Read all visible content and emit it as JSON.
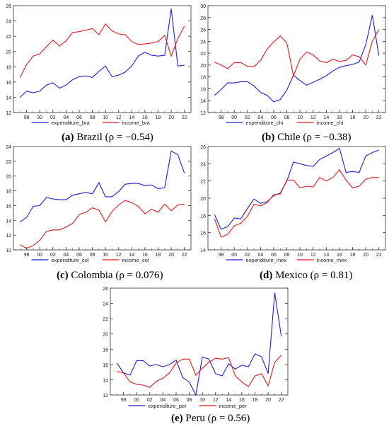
{
  "colors": {
    "expenditure": "#1f1fd6",
    "income": "#e31a1c"
  },
  "chart_data": [
    {
      "type": "line",
      "panel": "(a)",
      "caption": {
        "tag": "(a)",
        "name": "Brazil",
        "rho": "(ρ = −0.54)"
      },
      "x": [
        "1997",
        "1998",
        "1999",
        "2000",
        "2001",
        "2002",
        "2003",
        "2004",
        "2005",
        "2006",
        "2007",
        "2008",
        "2009",
        "2010",
        "2011",
        "2012",
        "2013",
        "2014",
        "2015",
        "2016",
        "2017",
        "2018",
        "2019",
        "2020",
        "2021",
        "2022"
      ],
      "xticks": [
        "98",
        "00",
        "02",
        "04",
        "06",
        "08",
        "10",
        "12",
        "14",
        "16",
        "18",
        "20",
        "22"
      ],
      "ylim": [
        12,
        26
      ],
      "yticks": [
        "12",
        "14",
        "16",
        "18",
        "20",
        "22",
        "24",
        "26"
      ],
      "grid": false,
      "legend_position": "bottom-center",
      "series": [
        {
          "name": "expenditure_bra",
          "values": [
            14.0,
            14.8,
            14.6,
            14.8,
            15.6,
            15.9,
            15.2,
            15.6,
            16.3,
            16.7,
            16.8,
            16.6,
            17.4,
            18.1,
            16.7,
            16.9,
            17.3,
            18.1,
            19.4,
            19.9,
            19.5,
            19.4,
            19.5,
            25.6,
            18.1,
            18.2
          ]
        },
        {
          "name": "income_bra",
          "values": [
            16.6,
            18.3,
            19.4,
            19.7,
            20.6,
            21.5,
            20.7,
            21.4,
            22.5,
            22.6,
            22.8,
            23.0,
            22.2,
            23.6,
            22.7,
            22.3,
            22.2,
            21.3,
            20.9,
            21.0,
            21.1,
            21.3,
            22.1,
            19.4,
            21.7,
            23.3
          ]
        }
      ]
    },
    {
      "type": "line",
      "panel": "(b)",
      "caption": {
        "tag": "(b)",
        "name": "Chile",
        "rho": "(ρ = −0.38)"
      },
      "x": [
        "1997",
        "1998",
        "1999",
        "2000",
        "2001",
        "2002",
        "2003",
        "2004",
        "2005",
        "2006",
        "2007",
        "2008",
        "2009",
        "2010",
        "2011",
        "2012",
        "2013",
        "2014",
        "2015",
        "2016",
        "2017",
        "2018",
        "2019",
        "2020",
        "2021",
        "2022"
      ],
      "xticks": [
        "98",
        "00",
        "02",
        "04",
        "06",
        "08",
        "10",
        "12",
        "14",
        "16",
        "18",
        "20",
        "22"
      ],
      "ylim": [
        12,
        30
      ],
      "yticks": [
        "12",
        "14",
        "16",
        "18",
        "20",
        "22",
        "24",
        "26",
        "28",
        "30"
      ],
      "grid": false,
      "legend_position": "bottom-center",
      "series": [
        {
          "name": "expenditure_chi",
          "values": [
            14.9,
            15.9,
            17.0,
            17.0,
            17.2,
            17.2,
            16.5,
            15.4,
            14.9,
            13.8,
            14.2,
            15.8,
            18.3,
            17.4,
            16.6,
            17.1,
            17.6,
            18.2,
            19.0,
            19.6,
            19.9,
            20.1,
            20.5,
            23.4,
            28.4,
            21.6
          ]
        },
        {
          "name": "income_chi",
          "values": [
            20.5,
            20.0,
            19.4,
            20.4,
            20.4,
            19.8,
            19.7,
            20.8,
            22.7,
            23.9,
            24.9,
            23.7,
            18.2,
            21.0,
            22.2,
            21.7,
            20.7,
            20.4,
            21.0,
            20.6,
            20.8,
            21.7,
            21.4,
            20.0,
            24.0,
            26.0
          ]
        }
      ]
    },
    {
      "type": "line",
      "panel": "(c)",
      "caption": {
        "tag": "(c)",
        "name": "Colombia",
        "rho": "(ρ = 0.076)"
      },
      "x": [
        "1997",
        "1998",
        "1999",
        "2000",
        "2001",
        "2002",
        "2003",
        "2004",
        "2005",
        "2006",
        "2007",
        "2008",
        "2009",
        "2010",
        "2011",
        "2012",
        "2013",
        "2014",
        "2015",
        "2016",
        "2017",
        "2018",
        "2019",
        "2020",
        "2021",
        "2022"
      ],
      "xticks": [
        "98",
        "00",
        "02",
        "04",
        "06",
        "08",
        "10",
        "12",
        "14",
        "16",
        "18",
        "20",
        "22"
      ],
      "ylim": [
        10,
        24
      ],
      "yticks": [
        "10",
        "12",
        "14",
        "16",
        "18",
        "20",
        "22",
        "24"
      ],
      "grid": false,
      "legend_position": "bottom-center",
      "series": [
        {
          "name": "expenditure_col",
          "values": [
            13.8,
            14.4,
            15.9,
            16.0,
            17.1,
            16.9,
            16.8,
            16.8,
            17.4,
            17.6,
            17.8,
            17.6,
            19.1,
            17.2,
            17.2,
            17.9,
            18.9,
            19.0,
            19.0,
            18.7,
            18.8,
            18.3,
            18.4,
            23.4,
            22.9,
            20.4
          ]
        },
        {
          "name": "income_col",
          "values": [
            10.7,
            10.2,
            10.6,
            11.3,
            12.5,
            12.7,
            12.7,
            13.1,
            13.6,
            14.8,
            15.1,
            15.7,
            15.4,
            13.8,
            15.2,
            16.1,
            16.7,
            16.4,
            15.9,
            14.9,
            15.5,
            15.1,
            16.2,
            15.3,
            16.1,
            16.2
          ]
        }
      ]
    },
    {
      "type": "line",
      "panel": "(d)",
      "caption": {
        "tag": "(d)",
        "name": "Mexico",
        "rho": "(ρ = 0.81)"
      },
      "x": [
        "1997",
        "1998",
        "1999",
        "2000",
        "2001",
        "2002",
        "2003",
        "2004",
        "2005",
        "2006",
        "2007",
        "2008",
        "2009",
        "2010",
        "2011",
        "2012",
        "2013",
        "2014",
        "2015",
        "2016",
        "2017",
        "2018",
        "2019",
        "2020",
        "2021",
        "2022"
      ],
      "xticks": [
        "98",
        "00",
        "02",
        "04",
        "06",
        "08",
        "10",
        "12",
        "14",
        "16",
        "18",
        "20",
        "22"
      ],
      "ylim": [
        14,
        26
      ],
      "yticks": [
        "14",
        "16",
        "18",
        "20",
        "22",
        "24",
        "26"
      ],
      "grid": false,
      "legend_position": "bottom-center",
      "series": [
        {
          "name": "expenditure_mex",
          "values": [
            18.1,
            16.4,
            16.7,
            17.7,
            17.6,
            18.8,
            19.9,
            19.4,
            19.6,
            20.3,
            20.6,
            22.0,
            24.2,
            24.0,
            23.8,
            23.7,
            24.5,
            24.9,
            25.3,
            25.8,
            23.0,
            23.1,
            23.0,
            24.9,
            25.3,
            25.6
          ]
        },
        {
          "name": "income_mex",
          "values": [
            17.6,
            15.5,
            15.8,
            16.8,
            17.1,
            17.9,
            19.3,
            19.1,
            19.5,
            20.4,
            20.5,
            22.1,
            22.1,
            21.2,
            21.4,
            21.3,
            22.4,
            22.0,
            22.4,
            23.3,
            22.1,
            21.2,
            21.4,
            22.2,
            22.4,
            22.4
          ]
        }
      ]
    },
    {
      "type": "line",
      "panel": "(e)",
      "caption": {
        "tag": "(e)",
        "name": "Peru",
        "rho": "(ρ = 0.56)"
      },
      "x": [
        "1997",
        "1998",
        "1999",
        "2000",
        "2001",
        "2002",
        "2003",
        "2004",
        "2005",
        "2006",
        "2007",
        "2008",
        "2009",
        "2010",
        "2011",
        "2012",
        "2013",
        "2014",
        "2015",
        "2016",
        "2017",
        "2018",
        "2019",
        "2020",
        "2021",
        "2022"
      ],
      "xticks": [
        "98",
        "00",
        "02",
        "04",
        "06",
        "08",
        "10",
        "12",
        "14",
        "16",
        "18",
        "20",
        "22"
      ],
      "ylim": [
        12,
        26
      ],
      "yticks": [
        "12",
        "14",
        "16",
        "18",
        "20",
        "22",
        "24",
        "26"
      ],
      "grid": false,
      "legend_position": "bottom-center",
      "series": [
        {
          "name": "expenditure_per",
          "values": [
            16.2,
            14.9,
            14.6,
            16.5,
            16.5,
            15.8,
            16.0,
            15.7,
            16.0,
            16.6,
            14.3,
            13.7,
            12.0,
            17.0,
            16.7,
            14.8,
            14.5,
            16.1,
            15.4,
            15.9,
            15.7,
            17.4,
            17.0,
            14.8,
            25.4,
            19.7
          ]
        },
        {
          "name": "income_per",
          "values": [
            15.1,
            14.9,
            13.7,
            13.4,
            13.3,
            13.0,
            13.8,
            14.2,
            14.9,
            16.2,
            16.7,
            16.7,
            14.6,
            15.5,
            16.3,
            16.8,
            16.7,
            16.9,
            14.5,
            13.7,
            13.1,
            14.5,
            14.8,
            13.2,
            16.3,
            17.2
          ]
        }
      ]
    }
  ]
}
